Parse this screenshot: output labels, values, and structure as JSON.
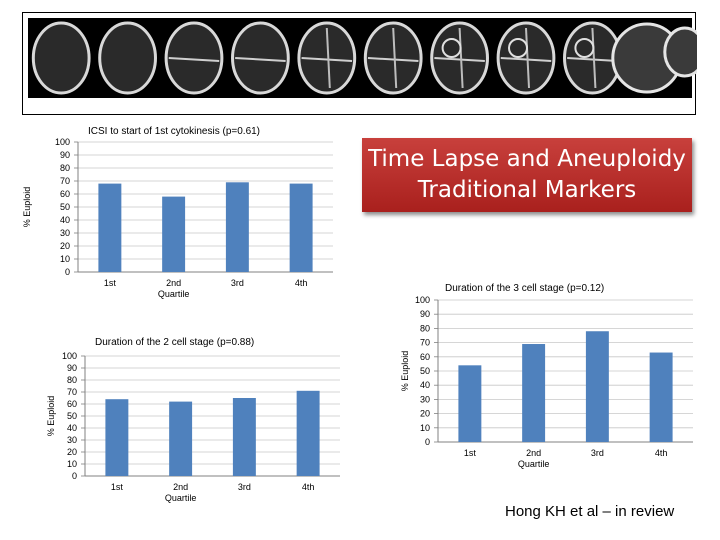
{
  "banner": {
    "line1": "Time Lapse and Aneuploidy",
    "line2": "Traditional Markers",
    "background_color": "#b8302c"
  },
  "citation": "Hong KH et al – in review",
  "embryo_strip": {
    "frames": 10,
    "description_icon": "embryo-timelapse-image"
  },
  "chart_data": [
    {
      "type": "bar",
      "title": "ICSI to start of 1st cytokinesis (p=0.61)",
      "categories": [
        "1st",
        "2nd",
        "3rd",
        "4th"
      ],
      "values": [
        68,
        58,
        69,
        68
      ],
      "xlabel": "Quartile",
      "ylabel": "% Euploid",
      "ylim": [
        0,
        100
      ],
      "yticks": [
        0,
        10,
        20,
        30,
        40,
        50,
        60,
        70,
        80,
        90,
        100
      ],
      "grid": true,
      "bar_color": "#4f81bd"
    },
    {
      "type": "bar",
      "title": "Duration of the 2 cell stage (p=0.88)",
      "categories": [
        "1st",
        "2nd",
        "3rd",
        "4th"
      ],
      "values": [
        64,
        62,
        65,
        71
      ],
      "xlabel": "Quartile",
      "ylabel": "% Euploid",
      "ylim": [
        0,
        100
      ],
      "yticks": [
        0,
        10,
        20,
        30,
        40,
        50,
        60,
        70,
        80,
        90,
        100
      ],
      "grid": true,
      "bar_color": "#4f81bd"
    },
    {
      "type": "bar",
      "title": "Duration of the 3 cell stage (p=0.12)",
      "categories": [
        "1st",
        "2nd",
        "3rd",
        "4th"
      ],
      "values": [
        54,
        69,
        78,
        63
      ],
      "xlabel": "Quartile",
      "ylabel": "% Euploid",
      "ylim": [
        0,
        100
      ],
      "yticks": [
        0,
        10,
        20,
        30,
        40,
        50,
        60,
        70,
        80,
        90,
        100
      ],
      "grid": true,
      "bar_color": "#4f81bd"
    }
  ]
}
